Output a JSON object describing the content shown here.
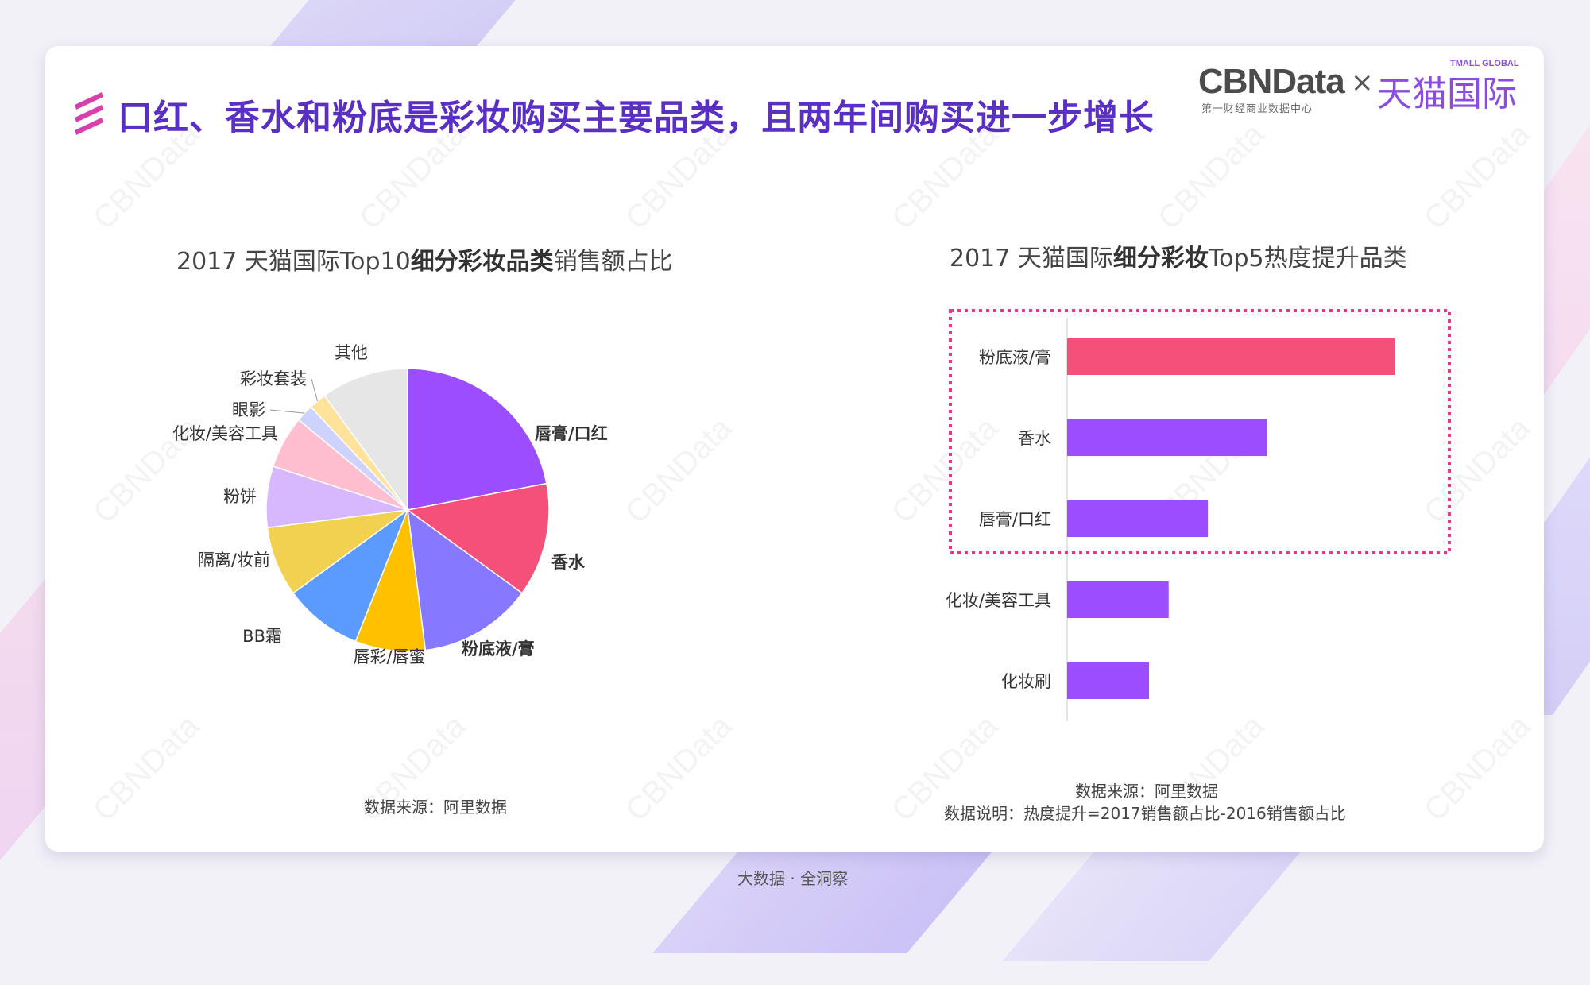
{
  "header": {
    "title": "口红、香水和粉底是彩妆购买主要品类，且两年间购买进一步增长",
    "logo": {
      "cbn": "CBNData",
      "cbn_sub": "第一财经商业数据中心",
      "times": "×",
      "tmall": "天猫国际",
      "tmall_global": "TMALL GLOBAL"
    }
  },
  "watermark": "CBNData",
  "footer": {
    "text": "大数据 · 全洞察"
  },
  "left": {
    "title_prefix": "2017 天猫国际Top10",
    "title_bold": "细分彩妆品类",
    "title_suffix": "销售额占比",
    "source": "数据来源：阿里数据"
  },
  "right": {
    "title_prefix": "2017 天猫国际",
    "title_bold": "细分彩妆",
    "title_suffix": "Top5热度提升品类",
    "source": "数据来源：阿里数据",
    "note": "数据说明：热度提升=2017销售额占比-2016销售额占比"
  },
  "colors": {
    "title": "#5a2fc4",
    "bar_primary": "#9b4dff",
    "bar_highlight": "#f4507a",
    "highlight_box": "#e6378b"
  },
  "chart_data": [
    {
      "type": "pie",
      "start_angle_deg": 0,
      "direction": "clockwise",
      "slices": [
        {
          "label": "唇膏/口红",
          "value": 22,
          "color": "#9b4dff",
          "bold": true
        },
        {
          "label": "香水",
          "value": 13,
          "color": "#f4507a",
          "bold": true
        },
        {
          "label": "粉底液/膏",
          "value": 13,
          "color": "#8678ff",
          "bold": true
        },
        {
          "label": "唇彩/唇蜜",
          "value": 8,
          "color": "#ffc000",
          "bold": false
        },
        {
          "label": "BB霜",
          "value": 9,
          "color": "#5b9bff",
          "bold": false
        },
        {
          "label": "隔离/妆前",
          "value": 8,
          "color": "#f1d14f",
          "bold": false
        },
        {
          "label": "粉饼",
          "value": 7,
          "color": "#d7b8ff",
          "bold": false
        },
        {
          "label": "化妆/美容工具",
          "value": 6,
          "color": "#ffbfd0",
          "bold": false
        },
        {
          "label": "眼影",
          "value": 2,
          "color": "#cdd2ff",
          "bold": false
        },
        {
          "label": "彩妆套装",
          "value": 2,
          "color": "#ffe39a",
          "bold": false
        },
        {
          "label": "其他",
          "value": 10,
          "color": "#e6e6e6",
          "bold": false
        }
      ]
    },
    {
      "type": "bar",
      "orientation": "horizontal",
      "categories": [
        "粉底液/膏",
        "香水",
        "唇膏/口红",
        "化妆/美容工具",
        "化妆刷"
      ],
      "values": [
        100,
        61,
        43,
        31,
        25
      ],
      "highlight_first": 1,
      "highlight_box_categories": [
        "粉底液/膏",
        "香水",
        "唇膏/口红"
      ],
      "xlim": [
        0,
        100
      ],
      "title": "",
      "xlabel": "",
      "ylabel": ""
    }
  ]
}
